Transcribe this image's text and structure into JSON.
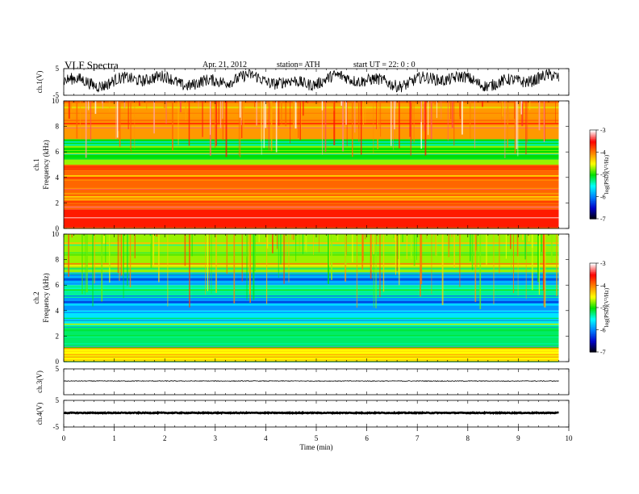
{
  "header": {
    "title": "VLF  Spectra",
    "date": "Apr. 21, 2012",
    "station": "station= ATH",
    "start": "start  UT  =    22: 0   : 0"
  },
  "chart_data": [
    {
      "type": "line",
      "ylabel": "ch.1(V)",
      "y_ticks": [
        "5",
        "-5"
      ],
      "ylim": [
        -5,
        5
      ],
      "xlim": [
        0,
        10
      ],
      "data_end_min": 9.8,
      "trace": "noisy waveform, mostly between -3 and +4 V"
    },
    {
      "type": "heatmap",
      "channel_label": "ch.1",
      "ylabel": "Frequency  (kHz)",
      "y_ticks": [
        "0",
        "2",
        "4",
        "6",
        "8",
        "10"
      ],
      "ylim": [
        0,
        10
      ],
      "xlim": [
        0,
        10
      ],
      "colorbar": {
        "label": "log(PSD)(V²/Hz)",
        "ticks": [
          "-3",
          "-4",
          "-5",
          "-6",
          "-7"
        ],
        "range": [
          -7,
          -3
        ],
        "colors": [
          "#000000",
          "#0000c8",
          "#0080ff",
          "#00ffff",
          "#00e000",
          "#ffff00",
          "#ff8000",
          "#ff0000",
          "#ffffff"
        ]
      },
      "bands": [
        {
          "from_khz": 0,
          "to_khz": 1.5,
          "level": -3.6
        },
        {
          "from_khz": 1.5,
          "to_khz": 5,
          "level": -3.9
        },
        {
          "from_khz": 5,
          "to_khz": 5.4,
          "level": -4.7
        },
        {
          "from_khz": 5.4,
          "to_khz": 7,
          "level": -5.0
        },
        {
          "from_khz": 7,
          "to_khz": 10,
          "level": -4.1
        }
      ]
    },
    {
      "type": "heatmap",
      "channel_label": "ch.2",
      "ylabel": "Frequency  (kHz)",
      "y_ticks": [
        "0",
        "2",
        "4",
        "6",
        "8",
        "10"
      ],
      "ylim": [
        0,
        10
      ],
      "xlim": [
        0,
        10
      ],
      "colorbar": {
        "label": "log(PSD)(V²/Hz)",
        "ticks": [
          "-3",
          "-4",
          "-5",
          "-6",
          "-7"
        ],
        "range": [
          -7,
          -3
        ]
      },
      "bands": [
        {
          "from_khz": 0,
          "to_khz": 1.2,
          "level": -4.5
        },
        {
          "from_khz": 1.2,
          "to_khz": 3,
          "level": -5.2
        },
        {
          "from_khz": 3,
          "to_khz": 4,
          "level": -5.6
        },
        {
          "from_khz": 4,
          "to_khz": 5,
          "level": -5.9
        },
        {
          "from_khz": 5,
          "to_khz": 6,
          "level": -5.3
        },
        {
          "from_khz": 6,
          "to_khz": 7,
          "level": -5.8
        },
        {
          "from_khz": 7,
          "to_khz": 10,
          "level": -4.7
        }
      ]
    },
    {
      "type": "line",
      "ylabel": "ch.3(V)",
      "y_ticks": [
        "5"
      ],
      "ylim": [
        -5,
        5
      ],
      "xlim": [
        0,
        10
      ],
      "data_end_min": 9.8,
      "trace": "flat near 0 V"
    },
    {
      "type": "line",
      "ylabel": "ch.4(V)",
      "y_ticks": [
        "5",
        "-5"
      ],
      "ylim": [
        -5,
        5
      ],
      "xlim": [
        0,
        10
      ],
      "data_end_min": 9.8,
      "trace": "flat near 0 V, thick"
    }
  ],
  "x_axis": {
    "label": "Time  (min)",
    "ticks": [
      "0",
      "1",
      "2",
      "3",
      "4",
      "5",
      "6",
      "7",
      "8",
      "9",
      "10"
    ]
  }
}
